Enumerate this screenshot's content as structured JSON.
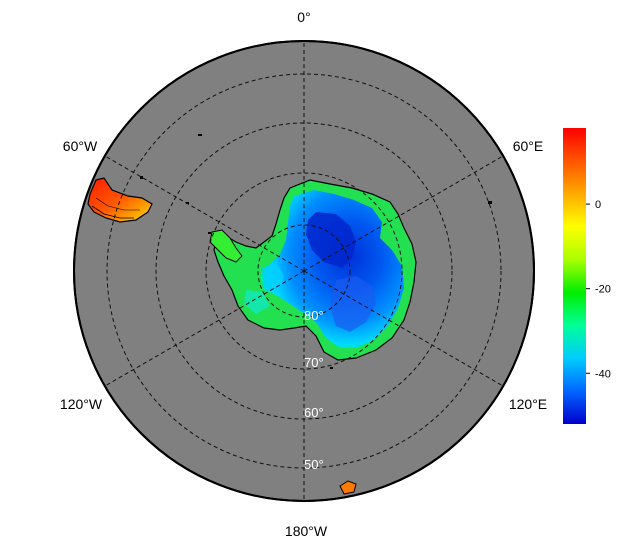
{
  "map": {
    "projection": "south-polar-stereographic",
    "lon_labels": {
      "top": "0°",
      "right_upper": "60°E",
      "right_lower": "120°E",
      "bottom": "180°W",
      "left_lower": "120°W",
      "left_upper": "60°W"
    },
    "lat_labels": [
      "80°",
      "70°",
      "60°",
      "50°"
    ],
    "colors": {
      "ocean": "#808080",
      "graticule": "#111111",
      "outline": "#000000"
    }
  },
  "colorbar": {
    "min": -52,
    "max": 18,
    "ticks": [
      {
        "value": 0,
        "label": "0"
      },
      {
        "value": -20,
        "label": "-20"
      },
      {
        "value": -40,
        "label": "-40"
      }
    ],
    "colors": [
      "#0000cc",
      "#0066ff",
      "#00ccff",
      "#00ff99",
      "#00ee00",
      "#aaff00",
      "#ffff00",
      "#ffaa00",
      "#ff5500",
      "#ff0000"
    ]
  }
}
